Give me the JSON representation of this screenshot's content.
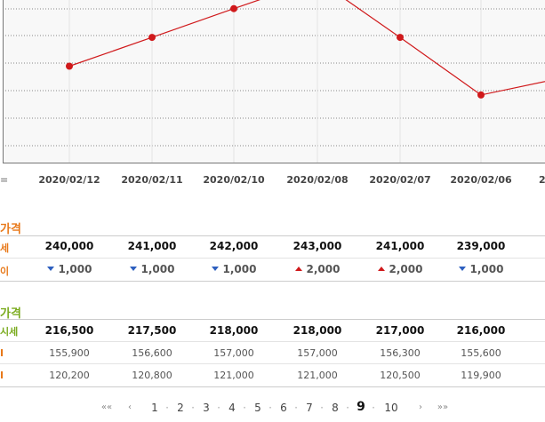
{
  "chart_data": {
    "type": "line",
    "categories": [
      "2020/02/12",
      "2020/02/11",
      "2020/02/10",
      "2020/02/08",
      "2020/02/07",
      "2020/02/06"
    ],
    "values": [
      240000,
      241000,
      242000,
      243000,
      241000,
      239000
    ],
    "color": "#d0191b"
  },
  "section1": {
    "title_fragment": "가격",
    "row_labels": [
      "세",
      "이"
    ],
    "prices": [
      "240,000",
      "241,000",
      "242,000",
      "243,000",
      "241,000",
      "239,000"
    ],
    "changes": [
      {
        "dir": "down",
        "value": "1,000"
      },
      {
        "dir": "down",
        "value": "1,000"
      },
      {
        "dir": "down",
        "value": "1,000"
      },
      {
        "dir": "up",
        "value": "2,000"
      },
      {
        "dir": "up",
        "value": "2,000"
      },
      {
        "dir": "down",
        "value": "1,000"
      }
    ]
  },
  "section2": {
    "title_fragment": "가격",
    "row_labels": [
      "시세",
      "I",
      "I"
    ],
    "prices": [
      "216,500",
      "217,500",
      "218,000",
      "218,000",
      "217,000",
      "216,000"
    ],
    "row2": [
      "155,900",
      "156,600",
      "157,000",
      "157,000",
      "156,300",
      "155,600"
    ],
    "row3": [
      "120,200",
      "120,800",
      "121,000",
      "121,000",
      "120,500",
      "119,900"
    ]
  },
  "pagination": {
    "first": "««",
    "prev": "‹",
    "pages": [
      "1",
      "2",
      "3",
      "4",
      "5",
      "6",
      "7",
      "8",
      "9",
      "10"
    ],
    "current": "9",
    "next": "›",
    "last": "»»"
  },
  "colors": {
    "line": "#d0191b",
    "title1": "#e8791a",
    "title2": "#7aab1e",
    "up": "#d0191b",
    "down": "#2d5fbf"
  }
}
